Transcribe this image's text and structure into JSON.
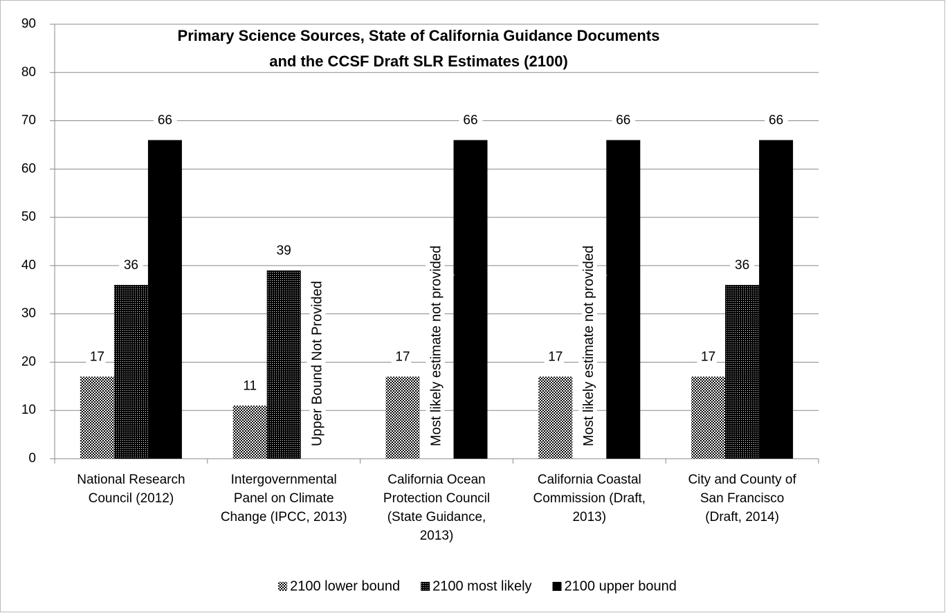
{
  "chart_data": {
    "type": "bar",
    "title": [
      "Primary Science Sources, State of California Guidance Documents",
      "and the CCSF Draft SLR Estimates (2100)"
    ],
    "categories": [
      "National Research\nCouncil (2012)",
      "Intergovernmental\nPanel on Climate\nChange (IPCC, 2013)",
      "California Ocean\nProtection Council\n(State Guidance,\n2013)",
      "California Coastal\nCommission (Draft,\n2013)",
      "City and County of\nSan Francisco\n(Draft, 2014)"
    ],
    "series": [
      {
        "name": "2100 lower bound",
        "color": "#000000",
        "fill": "checker-light",
        "values": [
          17,
          11,
          17,
          17,
          17
        ]
      },
      {
        "name": "2100 most likely",
        "color": "#000000",
        "fill": "checker-dense",
        "values": [
          36,
          39,
          null,
          null,
          36
        ]
      },
      {
        "name": "2100 upper bound",
        "color": "#000000",
        "fill": "solid",
        "values": [
          66,
          null,
          66,
          66,
          66
        ]
      }
    ],
    "annotations": [
      {
        "text": "Upper Bound Not Provided",
        "category": 1,
        "series": 2
      },
      {
        "text": "Most likely estimate not provided",
        "category": 2,
        "series": 1
      },
      {
        "text": "Most likely estimate not provided",
        "category": 3,
        "series": 1
      }
    ],
    "ylim": [
      0,
      90
    ],
    "yticks": [
      0,
      10,
      20,
      30,
      40,
      50,
      60,
      70,
      80,
      90
    ],
    "grid": true,
    "legend": "bottom"
  }
}
